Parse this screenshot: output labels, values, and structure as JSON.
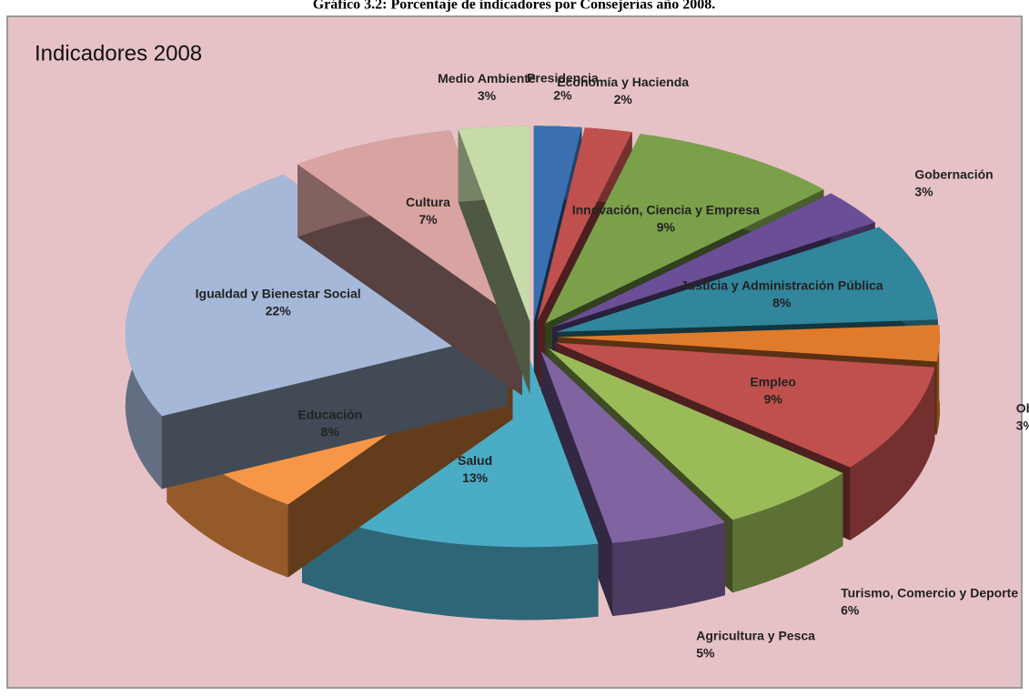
{
  "header": {
    "title": "Gráfico 3.2: Porcentaje de indicadores por Consejerías año 2008."
  },
  "chart_data": {
    "type": "pie",
    "title": "Indicadores 2008",
    "categories": [
      "Presidencia",
      "Economía y Hacienda",
      "Innovación, Ciencia y Empresa",
      "Gobernación",
      "Justicia y Administración Pública",
      "Obras Públicas y Transportes",
      "Empleo",
      "Turismo, Comercio y Deporte",
      "Agricultura y Pesca",
      "Salud",
      "Educación",
      "Igualdad y Bienestar Social",
      "Cultura",
      "Medio Ambiente"
    ],
    "values": [
      2,
      2,
      9,
      3,
      8,
      3,
      9,
      6,
      5,
      13,
      8,
      22,
      7,
      3
    ],
    "value_labels": [
      "2%",
      "2%",
      "9%",
      "3%",
      "8%",
      "3%",
      "9%",
      "6%",
      "5%",
      "13%",
      "8%",
      "22%",
      "7%",
      "3%"
    ],
    "colors": [
      "#3a6fb0",
      "#c0504d",
      "#7aa04a",
      "#6a4f96",
      "#31869b",
      "#e07b2c",
      "#c0504d",
      "#9bbb59",
      "#8064a2",
      "#4bacc6",
      "#f79646",
      "#a5b8d8",
      "#d9a3a2",
      "#c6dba8"
    ]
  }
}
